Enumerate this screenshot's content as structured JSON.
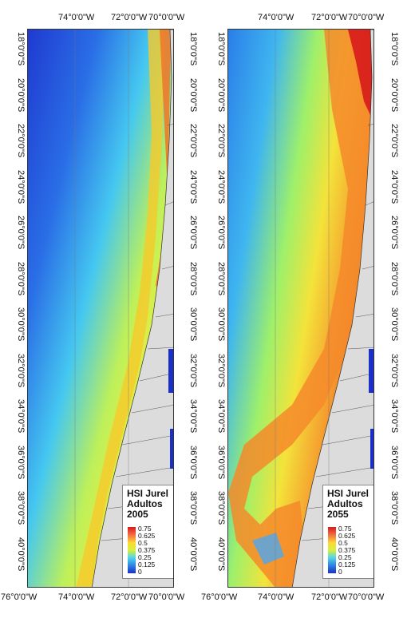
{
  "maps": [
    {
      "id": "left",
      "legend": {
        "title_lines": [
          "HSI Jurel",
          "Adultos",
          "2005"
        ],
        "ticks": [
          "0.75",
          "0.625",
          "0.5",
          "0.375",
          "0.25",
          "0.125",
          "0"
        ]
      }
    },
    {
      "id": "right",
      "legend": {
        "title_lines": [
          "HSI Jurel",
          "Adultos",
          "2055"
        ],
        "ticks": [
          "0.75",
          "0.625",
          "0.5",
          "0.375",
          "0.25",
          "0.125",
          "0"
        ]
      }
    }
  ],
  "axes": {
    "top_lon": [
      "74°0'0\"W",
      "72°0'0\"W",
      "70°0'0\"W"
    ],
    "bottom_lon": [
      "76°0'0\"W",
      "74°0'0\"W",
      "72°0'0\"W",
      "70°0'0\"W"
    ],
    "lat": [
      "18°0'0\"S",
      "20°0'0\"S",
      "22°0'0\"S",
      "24°0'0\"S",
      "26°0'0\"S",
      "28°0'0\"S",
      "30°0'0\"S",
      "32°0'0\"S",
      "34°0'0\"S",
      "36°0'0\"S",
      "38°0'0\"S",
      "40°0'0\"S"
    ]
  },
  "colors": {
    "land": "#dcdcdc",
    "ocean_low": "#1a30c8",
    "ocean_high": "#d7191c"
  }
}
